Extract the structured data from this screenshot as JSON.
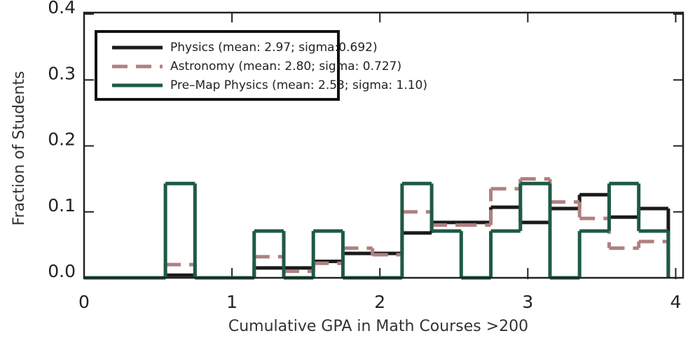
{
  "chart_data": {
    "type": "histogram",
    "xlabel": "Cumulative GPA in Math Courses >200",
    "ylabel": "Fraction of Students",
    "bins": [
      0.15,
      0.35,
      0.55,
      0.75,
      0.95,
      1.15,
      1.35,
      1.55,
      1.75,
      1.95,
      2.15,
      2.35,
      2.55,
      2.75,
      2.95,
      3.15,
      3.35,
      3.55,
      3.75,
      3.95
    ],
    "series": [
      {
        "name": "Physics (mean: 2.97; sigma:0.692)",
        "color": "#1a1a1a",
        "dash": false,
        "values": [
          0,
          0,
          0.004,
          0,
          0,
          0.015,
          0.015,
          0.025,
          0.037,
          0.037,
          0.068,
          0.084,
          0.084,
          0.107,
          0.084,
          0.105,
          0.126,
          0.092,
          0.105
        ]
      },
      {
        "name": "Astronomy (mean: 2.80; sigma: 0.727)",
        "color": "#b08080",
        "dash": true,
        "values": [
          0,
          0,
          0.02,
          0,
          0,
          0.032,
          0.01,
          0.022,
          0.045,
          0.035,
          0.1,
          0.08,
          0.08,
          0.135,
          0.15,
          0.115,
          0.09,
          0.045,
          0.055
        ]
      },
      {
        "name": "Pre–Map Physics (mean: 2.53; sigma: 1.10)",
        "color": "#1e5a46",
        "dash": false,
        "values": [
          0,
          0,
          0.143,
          0,
          0,
          0.071,
          0,
          0.071,
          0,
          0,
          0.143,
          0.071,
          0,
          0.071,
          0.143,
          0,
          0.071,
          0.143,
          0.071
        ]
      }
    ],
    "xlim": [
      0,
      4.05
    ],
    "ylim": [
      0,
      0.4
    ],
    "xticks": [
      0,
      1,
      2,
      3,
      4
    ],
    "yticks": [
      {
        "value": 0,
        "label": "0.0"
      },
      0.1,
      0.2,
      0.3,
      0.4
    ],
    "legend": "upper left"
  }
}
